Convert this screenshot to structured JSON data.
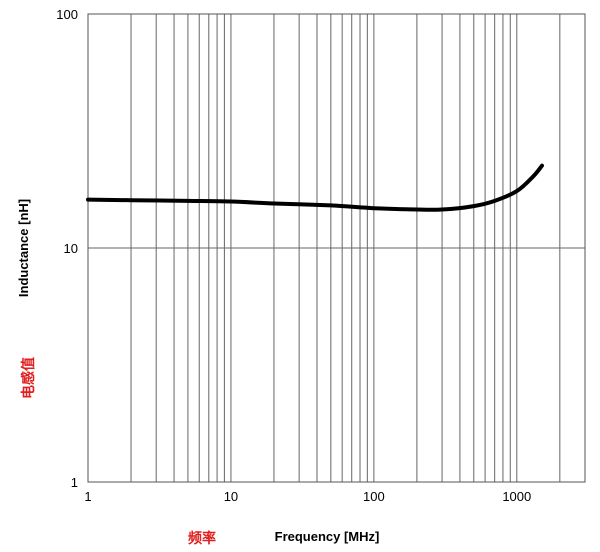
{
  "chart_data": {
    "type": "line",
    "xlabel": "Frequency [MHz]",
    "ylabel": "Inductance [nH]",
    "x_scale": "log",
    "y_scale": "log",
    "xlim": [
      1,
      3000
    ],
    "ylim": [
      1,
      100
    ],
    "x_tick_labels": [
      "1",
      "10",
      "100",
      "1000"
    ],
    "y_tick_labels": [
      "1",
      "10",
      "100"
    ],
    "grid": "vertical log-minor lines; horizontal line at 10",
    "series": [
      {
        "color": "#000000",
        "x": [
          1,
          2,
          5,
          10,
          20,
          50,
          100,
          200,
          300,
          500,
          700,
          1000,
          1300,
          1500
        ],
        "y": [
          16.1,
          16.0,
          15.9,
          15.8,
          15.5,
          15.2,
          14.8,
          14.6,
          14.6,
          15.1,
          15.9,
          17.5,
          20.2,
          22.5
        ]
      }
    ],
    "annotations": [
      {
        "text": "电感值",
        "color": "#e02020"
      },
      {
        "text": "频率",
        "color": "#e02020"
      }
    ]
  }
}
